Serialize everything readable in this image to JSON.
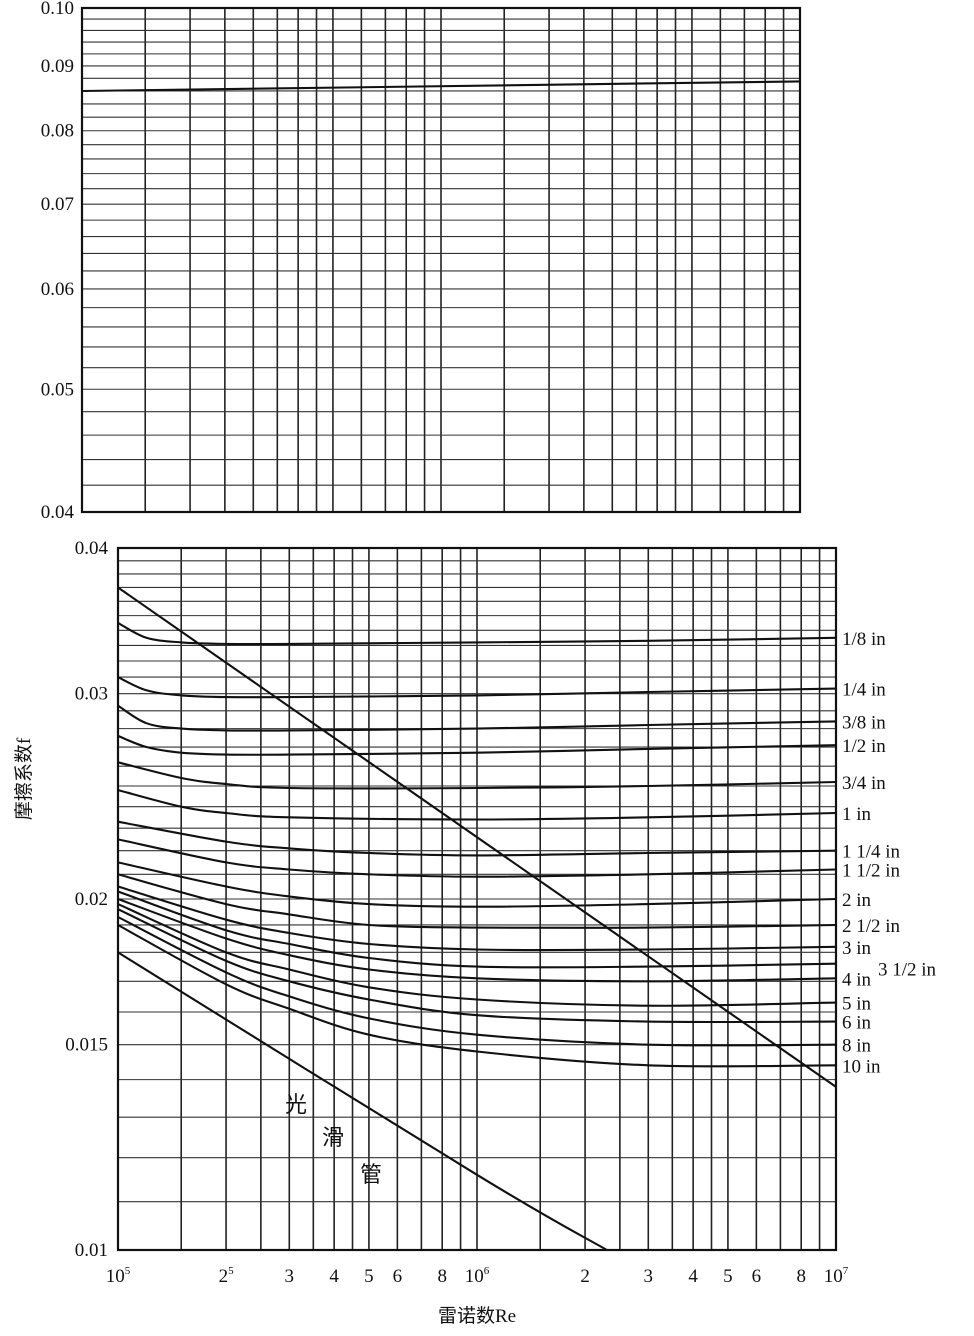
{
  "chart_data": [
    {
      "type": "line",
      "xscale": "log",
      "yscale": "log",
      "xlim": [
        100000,
        10000000
      ],
      "ylim": [
        0.04,
        0.1
      ],
      "y_ticks": [
        "0.10",
        "0.09",
        "0.08",
        "0.07",
        "0.06",
        "0.05",
        "0.04"
      ],
      "grid": true,
      "series": [
        {
          "x": [
            100000,
            10000000
          ],
          "y": [
            0.086,
            0.0875
          ]
        }
      ]
    },
    {
      "type": "line",
      "xscale": "log",
      "yscale": "log",
      "xlim": [
        100000,
        10000000
      ],
      "ylim": [
        0.01,
        0.04
      ],
      "ylabel": "摩擦系数f",
      "xlabel": "雷诺数Re",
      "y_ticks": [
        "0.04",
        "0.03",
        "0.02",
        "0.015",
        "0.01"
      ],
      "x_ticks": [
        {
          "base": "10",
          "sup": "5"
        },
        {
          "base": "2",
          "sup": "5"
        },
        {
          "base": "3",
          "sup": ""
        },
        {
          "base": "4",
          "sup": ""
        },
        {
          "base": "5",
          "sup": ""
        },
        {
          "base": "6",
          "sup": ""
        },
        {
          "base": "8",
          "sup": ""
        },
        {
          "base": "10",
          "sup": "6"
        },
        {
          "base": "2",
          "sup": ""
        },
        {
          "base": "3",
          "sup": ""
        },
        {
          "base": "4",
          "sup": ""
        },
        {
          "base": "5",
          "sup": ""
        },
        {
          "base": "6",
          "sup": ""
        },
        {
          "base": "8",
          "sup": ""
        },
        {
          "base": "10",
          "sup": "7"
        }
      ],
      "grid": true,
      "series": [
        {
          "name": "1/8 in",
          "x": [
            100000,
            120000,
            150000,
            200000,
            300000,
            1000000,
            3000000,
            10000000
          ],
          "y": [
            0.0345,
            0.0335,
            0.0332,
            0.0331,
            0.0331,
            0.0332,
            0.0333,
            0.0335
          ]
        },
        {
          "name": "1/4 in",
          "x": [
            100000,
            120000,
            150000,
            200000,
            300000,
            1000000,
            3000000,
            10000000
          ],
          "y": [
            0.031,
            0.0302,
            0.0299,
            0.0298,
            0.0298,
            0.0299,
            0.0301,
            0.0303
          ]
        },
        {
          "name": "3/8 in",
          "x": [
            100000,
            120000,
            150000,
            200000,
            300000,
            1000000,
            3000000,
            10000000
          ],
          "y": [
            0.0293,
            0.0283,
            0.028,
            0.0279,
            0.0279,
            0.028,
            0.0282,
            0.0284
          ]
        },
        {
          "name": "1/2 in",
          "x": [
            100000,
            120000,
            150000,
            200000,
            300000,
            1000000,
            3000000,
            10000000
          ],
          "y": [
            0.0276,
            0.027,
            0.0267,
            0.0266,
            0.0266,
            0.0267,
            0.0269,
            0.0271
          ]
        },
        {
          "name": "3/4 in",
          "x": [
            100000,
            150000,
            200000,
            300000,
            1000000,
            3000000,
            10000000
          ],
          "y": [
            0.0262,
            0.0254,
            0.0251,
            0.0249,
            0.0249,
            0.025,
            0.0252
          ]
        },
        {
          "name": "1 in",
          "x": [
            100000,
            150000,
            200000,
            300000,
            1000000,
            3000000,
            10000000
          ],
          "y": [
            0.0248,
            0.024,
            0.0237,
            0.0235,
            0.0234,
            0.0235,
            0.0237
          ]
        },
        {
          "name": "1 1/4 in",
          "x": [
            100000,
            200000,
            300000,
            500000,
            1000000,
            3000000,
            10000000
          ],
          "y": [
            0.0233,
            0.0224,
            0.0221,
            0.0219,
            0.0218,
            0.0219,
            0.022
          ]
        },
        {
          "name": "1 1/2 in",
          "x": [
            100000,
            200000,
            300000,
            500000,
            1000000,
            3000000,
            10000000
          ],
          "y": [
            0.0225,
            0.0215,
            0.0212,
            0.021,
            0.0209,
            0.021,
            0.0212
          ]
        },
        {
          "name": "2 in",
          "x": [
            100000,
            200000,
            300000,
            500000,
            1000000,
            3000000,
            10000000
          ],
          "y": [
            0.0215,
            0.0205,
            0.0201,
            0.0198,
            0.0197,
            0.0198,
            0.02
          ]
        },
        {
          "name": "2 1/2 in",
          "x": [
            100000,
            200000,
            300000,
            500000,
            1000000,
            3000000,
            10000000
          ],
          "y": [
            0.021,
            0.0198,
            0.0194,
            0.019,
            0.0189,
            0.0189,
            0.019
          ]
        },
        {
          "name": "3 in",
          "x": [
            100000,
            200000,
            300000,
            500000,
            1000000,
            3000000,
            10000000
          ],
          "y": [
            0.0205,
            0.0192,
            0.0187,
            0.0183,
            0.0181,
            0.0181,
            0.0182
          ]
        },
        {
          "name": "3 1/2 in",
          "x": [
            100000,
            200000,
            300000,
            500000,
            1000000,
            3000000,
            10000000
          ],
          "y": [
            0.0203,
            0.0188,
            0.0183,
            0.0178,
            0.0175,
            0.0175,
            0.0176
          ]
        },
        {
          "name": "4 in",
          "x": [
            100000,
            200000,
            300000,
            500000,
            1000000,
            3000000,
            10000000
          ],
          "y": [
            0.02,
            0.0185,
            0.0179,
            0.0174,
            0.0171,
            0.017,
            0.0171
          ]
        },
        {
          "name": "5 in",
          "x": [
            100000,
            200000,
            300000,
            500000,
            1000000,
            3000000,
            10000000
          ],
          "y": [
            0.0198,
            0.018,
            0.0174,
            0.0168,
            0.0164,
            0.0162,
            0.0163
          ]
        },
        {
          "name": "6 in",
          "x": [
            100000,
            200000,
            300000,
            500000,
            1000000,
            3000000,
            10000000
          ],
          "y": [
            0.0196,
            0.0177,
            0.017,
            0.0164,
            0.0159,
            0.0157,
            0.0157
          ]
        },
        {
          "name": "8 in",
          "x": [
            100000,
            200000,
            300000,
            500000,
            1000000,
            3000000,
            10000000
          ],
          "y": [
            0.0193,
            0.0173,
            0.0165,
            0.0158,
            0.0153,
            0.015,
            0.015
          ]
        },
        {
          "name": "10 in",
          "x": [
            100000,
            200000,
            300000,
            500000,
            1000000,
            3000000,
            10000000
          ],
          "y": [
            0.019,
            0.0169,
            0.0161,
            0.0153,
            0.0148,
            0.0144,
            0.0144
          ]
        },
        {
          "name": "光滑管",
          "x": [
            100000,
            1000000,
            2300000
          ],
          "y": [
            0.018,
            0.0116,
            0.01
          ]
        },
        {
          "x": [
            100000,
            10000000
          ],
          "y": [
            0.037,
            0.0138
          ]
        }
      ],
      "annotations": [
        "光",
        "滑",
        "管"
      ]
    }
  ]
}
